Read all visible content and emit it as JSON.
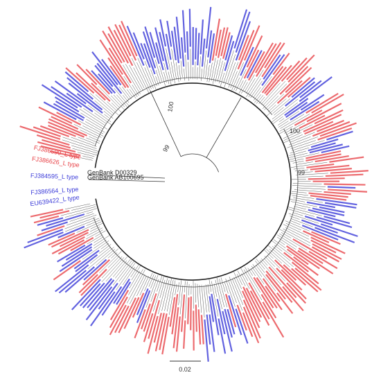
{
  "tree": {
    "outgroups": [
      "GenBank D00329",
      "GenBank AB100695"
    ],
    "leaves": [
      {
        "label": "EU639422_L type",
        "color": "#3a3ad8"
      },
      {
        "label": "FJ386564_L type",
        "color": "#3a3ad8"
      },
      {
        "label": "FJ384595_L type",
        "color": "#3a3ad8"
      },
      {
        "label": "FJ386626_L type",
        "color": "#e8454a"
      },
      {
        "label": "FJ386590_L type",
        "color": "#e8454a"
      }
    ],
    "bootstrap": [
      "100",
      "99",
      "100",
      "99"
    ],
    "scale_bar": "0.02"
  }
}
